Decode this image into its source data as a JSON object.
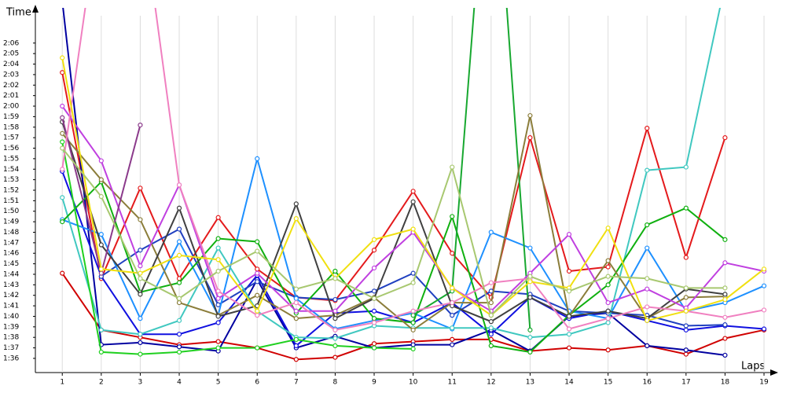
{
  "chart_data": {
    "type": "line",
    "y_label": "Time",
    "x_label": "Laps",
    "x": [
      1,
      2,
      3,
      4,
      5,
      6,
      7,
      8,
      9,
      10,
      11,
      12,
      13,
      14,
      15,
      16,
      17,
      18,
      19
    ],
    "xlim": [
      0.31,
      19.06
    ],
    "xticks": [
      1,
      2,
      3,
      4,
      5,
      6,
      7,
      8,
      9,
      10,
      11,
      12,
      13,
      14,
      15,
      16,
      17,
      18,
      19
    ],
    "ylim": [
      94.65,
      129.35
    ],
    "yticks": [
      {
        "value": 96,
        "label": "1:36"
      },
      {
        "value": 97,
        "label": "1:37"
      },
      {
        "value": 98,
        "label": "1:38"
      },
      {
        "value": 99,
        "label": "1:39"
      },
      {
        "value": 100,
        "label": "1:40"
      },
      {
        "value": 101,
        "label": "1:41"
      },
      {
        "value": 102,
        "label": "1:42"
      },
      {
        "value": 103,
        "label": "1:43"
      },
      {
        "value": 104,
        "label": "1:44"
      },
      {
        "value": 105,
        "label": "1:45"
      },
      {
        "value": 106,
        "label": "1:46"
      },
      {
        "value": 107,
        "label": "1:47"
      },
      {
        "value": 108,
        "label": "1:48"
      },
      {
        "value": 109,
        "label": "1:49"
      },
      {
        "value": 110,
        "label": "1:50"
      },
      {
        "value": 111,
        "label": "1:51"
      },
      {
        "value": 112,
        "label": "1:52"
      },
      {
        "value": 113,
        "label": "1:53"
      },
      {
        "value": 114,
        "label": "1:54"
      },
      {
        "value": 115,
        "label": "1:55"
      },
      {
        "value": 116,
        "label": "1:56"
      },
      {
        "value": 117,
        "label": "1:57"
      },
      {
        "value": 118,
        "label": "1:58"
      },
      {
        "value": 119,
        "label": "1:59"
      },
      {
        "value": 120,
        "label": "2:00"
      },
      {
        "value": 121,
        "label": "2:01"
      },
      {
        "value": 122,
        "label": "2:02"
      },
      {
        "value": 123,
        "label": "2:03"
      },
      {
        "value": 124,
        "label": "2:04"
      },
      {
        "value": 125,
        "label": "2:05"
      },
      {
        "value": 126,
        "label": "2:06"
      }
    ],
    "grid": true,
    "series": [
      {
        "color": "#e41a1c",
        "values": [
          123.2,
          103.6,
          112.2,
          103.6,
          109.4,
          104.5,
          101.8,
          101.5,
          106.3,
          111.9,
          106.0,
          101.8,
          117.0,
          104.3,
          104.7,
          117.9,
          105.6,
          117.0,
          null
        ]
      },
      {
        "color": "#d00000",
        "values": [
          104.1,
          98.7,
          98.0,
          97.3,
          97.6,
          97.0,
          95.9,
          96.1,
          97.4,
          97.6,
          97.8,
          97.8,
          96.7,
          97.0,
          96.8,
          97.2,
          96.4,
          97.9,
          98.7
        ]
      },
      {
        "color": "#0000a0",
        "values": [
          130.0,
          97.3,
          97.5,
          97.1,
          96.7,
          103.5,
          97.0,
          98.1,
          97.0,
          97.3,
          97.3,
          98.7,
          96.7,
          100.0,
          100.3,
          97.2,
          96.8,
          96.3,
          null
        ]
      },
      {
        "color": "#1010e0",
        "values": [
          113.8,
          103.8,
          98.3,
          98.3,
          99.4,
          103.9,
          97.2,
          100.3,
          100.5,
          99.4,
          101.3,
          98.3,
          101.8,
          99.8,
          100.5,
          99.6,
          98.7,
          99.1,
          98.8
        ]
      },
      {
        "color": "#2040c0",
        "values": [
          null,
          103.8,
          106.3,
          108.3,
          101.1,
          103.3,
          101.8,
          101.6,
          102.4,
          104.1,
          100.1,
          102.4,
          102.1,
          100.5,
          100.3,
          100.1,
          99.1,
          99.2,
          null
        ]
      },
      {
        "color": "#1e90ff",
        "values": [
          109.2,
          107.8,
          99.8,
          107.1,
          100.1,
          115.0,
          101.7,
          98.8,
          99.6,
          100.3,
          98.8,
          108.0,
          106.5,
          100.5,
          99.8,
          106.5,
          100.5,
          101.3,
          102.9
        ]
      },
      {
        "color": "#40c8c0",
        "values": [
          111.3,
          98.7,
          98.3,
          99.6,
          106.5,
          100.5,
          98.0,
          97.9,
          99.1,
          98.9,
          98.9,
          98.9,
          98.0,
          98.3,
          99.4,
          113.9,
          114.2,
          131.6,
          null
        ]
      },
      {
        "color": "#10b010",
        "values": [
          109.0,
          112.8,
          102.3,
          103.2,
          107.4,
          107.1,
          100.3,
          104.3,
          99.8,
          99.4,
          109.5,
          97.2,
          96.6,
          100.1,
          103.0,
          108.7,
          110.3,
          107.3,
          null
        ]
      },
      {
        "color": "#20d020",
        "values": [
          116.6,
          96.6,
          96.4,
          96.6,
          97.0,
          97.0,
          97.8,
          97.2,
          97.0,
          96.9,
          null,
          null,
          null,
          null,
          null,
          null,
          null,
          null,
          null
        ]
      },
      {
        "color": "#18a830",
        "values": [
          null,
          null,
          null,
          null,
          null,
          null,
          null,
          null,
          null,
          100.1,
          102.4,
          150.0,
          98.7,
          null,
          null,
          null,
          null,
          null,
          null
        ]
      },
      {
        "color": "#8b7d3a",
        "values": [
          117.4,
          113.0,
          109.2,
          101.3,
          100.1,
          102.0,
          99.8,
          100.1,
          101.8,
          98.7,
          101.3,
          101.3,
          119.1,
          100.0,
          105.3,
          99.8,
          101.8,
          101.9,
          null
        ]
      },
      {
        "color": "#404040",
        "values": [
          118.5,
          106.8,
          102.1,
          110.3,
          100.0,
          101.0,
          110.7,
          99.8,
          101.7,
          110.9,
          101.0,
          99.5,
          101.8,
          100.0,
          100.5,
          99.8,
          102.6,
          102.1,
          null
        ]
      },
      {
        "color": "#c040e0",
        "values": [
          120.0,
          114.8,
          104.8,
          112.5,
          101.7,
          104.1,
          100.5,
          100.5,
          104.6,
          108.0,
          102.7,
          100.5,
          104.1,
          107.8,
          101.3,
          102.6,
          100.8,
          105.1,
          104.3
        ]
      },
      {
        "color": "#8b3a8b",
        "values": [
          118.9,
          104.1,
          118.2,
          null,
          null,
          null,
          null,
          null,
          null,
          null,
          null,
          null,
          null,
          null,
          null,
          null,
          null,
          null,
          null
        ]
      },
      {
        "color": "#f080c0",
        "values": [
          114.0,
          140.0,
          140.0,
          112.5,
          102.4,
          100.1,
          101.3,
          98.7,
          99.4,
          100.5,
          101.3,
          103.2,
          103.6,
          98.8,
          99.8,
          100.9,
          100.5,
          99.9,
          100.6
        ]
      },
      {
        "color": "#f0e010",
        "values": [
          124.6,
          104.5,
          104.1,
          105.8,
          105.4,
          100.5,
          109.3,
          103.6,
          107.3,
          108.3,
          102.7,
          100.1,
          103.3,
          102.7,
          108.4,
          99.6,
          100.5,
          101.6,
          104.5
        ]
      },
      {
        "color": "#a8c870",
        "values": [
          116.0,
          111.4,
          103.6,
          101.7,
          104.3,
          106.2,
          102.6,
          103.6,
          101.7,
          103.2,
          114.2,
          100.1,
          103.8,
          102.4,
          103.8,
          103.6,
          102.7,
          102.7,
          null
        ]
      }
    ]
  }
}
